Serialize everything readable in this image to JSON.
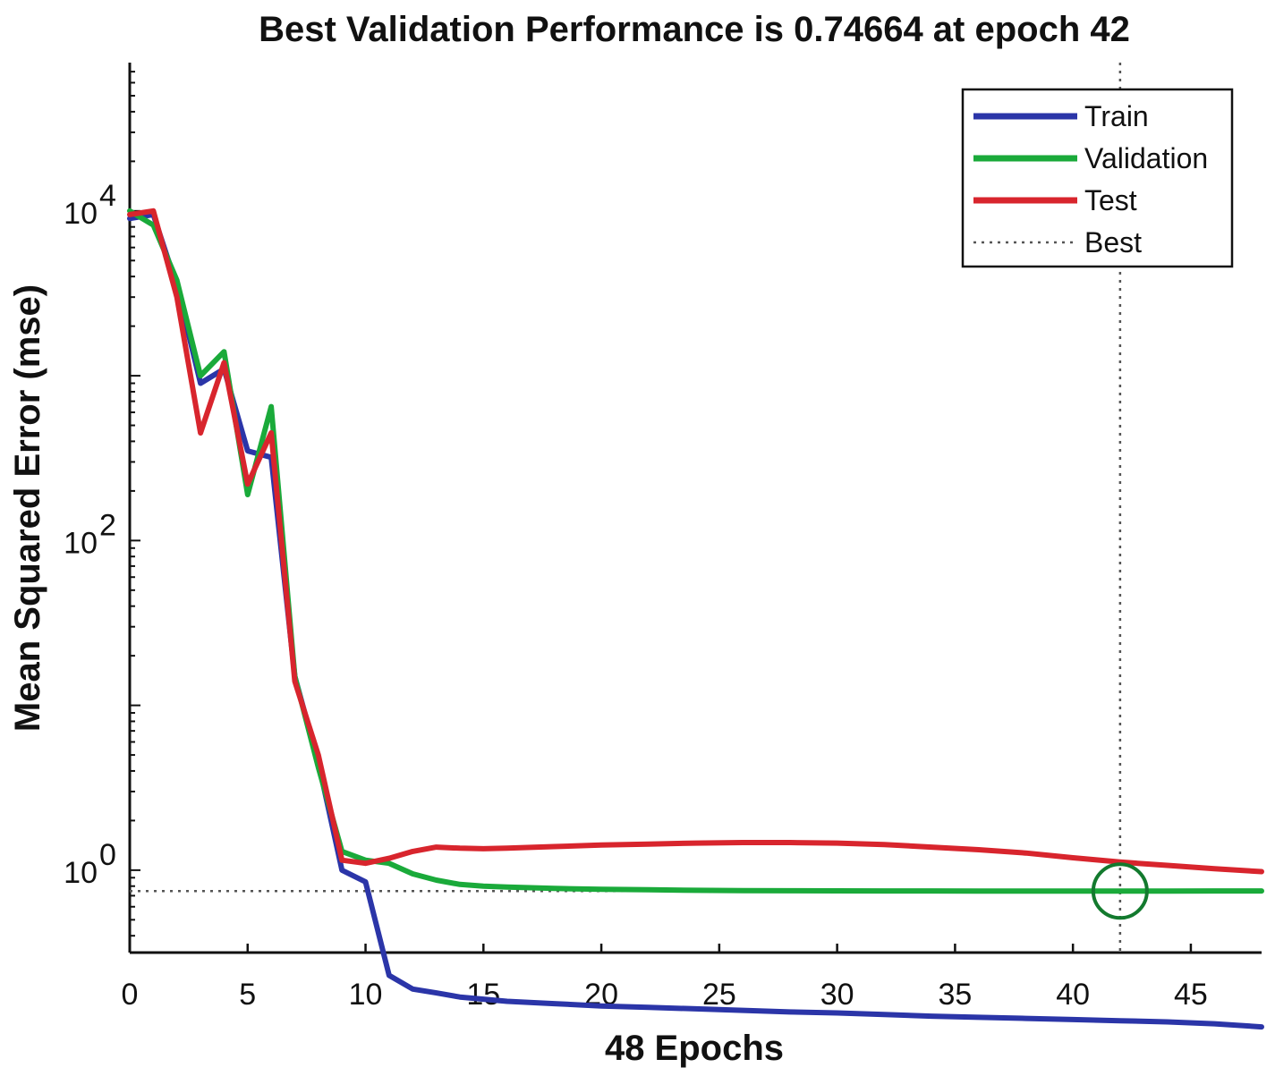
{
  "chart_data": {
    "type": "line",
    "title": "Best Validation Performance is 0.74664 at epoch 42",
    "xlabel": "48 Epochs",
    "ylabel": "Mean Squared Error  (mse)",
    "y_scale": "log",
    "xlim": [
      0,
      48
    ],
    "ylim_log10": [
      -0.5,
      4.9
    ],
    "x_ticks": [
      0,
      5,
      10,
      15,
      20,
      25,
      30,
      35,
      40,
      45
    ],
    "x_tick_labels": [
      "0",
      "5",
      "10",
      "15",
      "20",
      "25",
      "30",
      "35",
      "40",
      "45"
    ],
    "y_ticks": [
      {
        "value": 10000,
        "base": "10",
        "exp": "4"
      },
      {
        "value": 100,
        "base": "10",
        "exp": "2"
      },
      {
        "value": 1,
        "base": "10",
        "exp": "0"
      }
    ],
    "series": [
      {
        "name": "Train",
        "color": "#2b35a8",
        "x": [
          0,
          1,
          2,
          3,
          4,
          5,
          6,
          7,
          8,
          9,
          10,
          11,
          12,
          13,
          14,
          15,
          16,
          18,
          20,
          22,
          24,
          26,
          28,
          30,
          32,
          34,
          36,
          38,
          40,
          42,
          44,
          46,
          48
        ],
        "y": [
          9000,
          9500,
          3500,
          900,
          1100,
          350,
          320,
          15,
          4.5,
          1.0,
          0.85,
          0.23,
          0.19,
          0.18,
          0.17,
          0.165,
          0.16,
          0.155,
          0.15,
          0.147,
          0.144,
          0.141,
          0.138,
          0.136,
          0.133,
          0.13,
          0.128,
          0.126,
          0.124,
          0.122,
          0.12,
          0.117,
          0.112
        ]
      },
      {
        "name": "Validation",
        "color": "#1aaa3a",
        "x": [
          0,
          1,
          2,
          3,
          4,
          5,
          6,
          7,
          8,
          9,
          10,
          11,
          12,
          13,
          14,
          15,
          16,
          18,
          20,
          22,
          24,
          26,
          28,
          30,
          32,
          34,
          36,
          38,
          40,
          42,
          44,
          46,
          48
        ],
        "y": [
          10000,
          8200,
          3800,
          1000,
          1400,
          190,
          650,
          15,
          4.2,
          1.3,
          1.15,
          1.1,
          0.95,
          0.87,
          0.82,
          0.8,
          0.79,
          0.775,
          0.765,
          0.76,
          0.755,
          0.752,
          0.75,
          0.749,
          0.748,
          0.748,
          0.747,
          0.747,
          0.7466,
          0.74664,
          0.747,
          0.748,
          0.748
        ]
      },
      {
        "name": "Test",
        "color": "#d8252d",
        "x": [
          0,
          1,
          2,
          3,
          4,
          5,
          6,
          7,
          8,
          9,
          10,
          11,
          12,
          13,
          14,
          15,
          16,
          18,
          20,
          22,
          24,
          26,
          28,
          30,
          32,
          34,
          36,
          38,
          40,
          42,
          44,
          46,
          48
        ],
        "y": [
          9500,
          10000,
          3000,
          450,
          1200,
          220,
          450,
          14,
          5.0,
          1.15,
          1.1,
          1.18,
          1.3,
          1.38,
          1.36,
          1.35,
          1.36,
          1.39,
          1.42,
          1.44,
          1.46,
          1.47,
          1.47,
          1.46,
          1.43,
          1.38,
          1.33,
          1.27,
          1.19,
          1.12,
          1.07,
          1.02,
          0.98
        ]
      }
    ],
    "best": {
      "epoch": 42,
      "value": 0.74664,
      "label": "Best",
      "marker_color": "#137a2e"
    },
    "legend": {
      "position": "top-right",
      "entries": [
        {
          "label": "Train",
          "color": "#2b35a8",
          "style": "solid"
        },
        {
          "label": "Validation",
          "color": "#1aaa3a",
          "style": "solid"
        },
        {
          "label": "Test",
          "color": "#d8252d",
          "style": "solid"
        },
        {
          "label": "Best",
          "color": "#555555",
          "style": "dotted"
        }
      ]
    }
  }
}
